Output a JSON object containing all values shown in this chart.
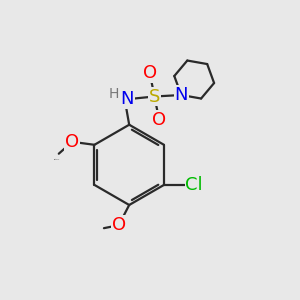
{
  "bg_color": "#e8e8e8",
  "atom_colors": {
    "C": "#1a1a1a",
    "N": "#0000ee",
    "O": "#ff0000",
    "S": "#bbaa00",
    "Cl": "#00bb00",
    "H": "#777777"
  },
  "bond_color": "#2a2a2a",
  "bond_width": 1.6,
  "font_size_atom": 13,
  "font_size_small": 10,
  "font_size_ome": 11
}
